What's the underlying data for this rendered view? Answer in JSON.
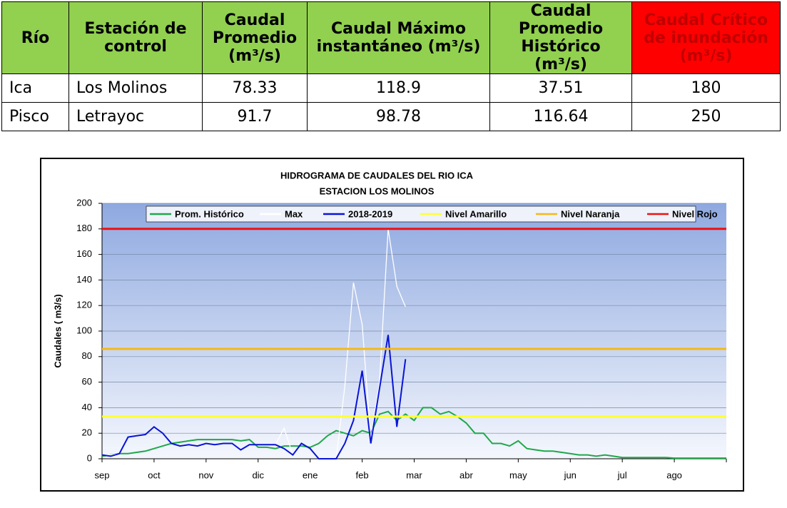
{
  "table": {
    "header": [
      "Río",
      "Estación de control",
      "Caudal Promedio (m³/s)",
      "Caudal Máximo instantáneo (m³/s)",
      "Caudal Promedio Histórico (m³/s)",
      "Caudal Crítico de inundación (m³/s)"
    ],
    "rows": [
      [
        "Ica",
        "Los Molinos",
        78.33,
        118.9,
        37.51,
        180
      ],
      [
        "Pisco",
        "Letrayoc",
        91.7,
        98.78,
        116.64,
        250
      ]
    ]
  },
  "chart_data": {
    "type": "line",
    "title": "HIDROGRAMA DE CAUDALES DEL RIO ICA",
    "subtitle": "ESTACION  LOS MOLINOS",
    "y_label": "Caudales ( m3/s)",
    "ylim": [
      0,
      200
    ],
    "yticks": [
      0,
      20,
      40,
      60,
      80,
      100,
      120,
      140,
      160,
      180,
      200
    ],
    "categories": [
      "sep",
      null,
      null,
      null,
      null,
      null,
      "oct",
      null,
      null,
      null,
      null,
      null,
      "nov",
      null,
      null,
      null,
      null,
      null,
      "dic",
      null,
      null,
      null,
      null,
      null,
      "ene",
      null,
      null,
      null,
      null,
      null,
      "feb",
      null,
      null,
      null,
      null,
      null,
      "mar",
      null,
      null,
      null,
      null,
      null,
      "abr",
      null,
      null,
      null,
      null,
      null,
      "may",
      null,
      null,
      null,
      null,
      null,
      "jun",
      null,
      null,
      null,
      null,
      null,
      "jul",
      null,
      null,
      null,
      null,
      null,
      "ago",
      null,
      null,
      null,
      null,
      null,
      null
    ],
    "series": [
      {
        "name": "Prom. Histórico",
        "color": "#1fa84a",
        "values": [
          2,
          3,
          4,
          4,
          5,
          6,
          8,
          10,
          12,
          13,
          14,
          15,
          15,
          15,
          15,
          15,
          14,
          15,
          9,
          9,
          8,
          10,
          10,
          10,
          9,
          12,
          18,
          22,
          20,
          18,
          22,
          20,
          35,
          37,
          30,
          35,
          30,
          40,
          40,
          35,
          37,
          33,
          28,
          20,
          20,
          12,
          12,
          10,
          14,
          8,
          7,
          6,
          6,
          5,
          4,
          3,
          3,
          2,
          3,
          2,
          1,
          1,
          1,
          1,
          1,
          1,
          0.5,
          0.5,
          0.5,
          0.5,
          0.5,
          0.5,
          0.5
        ]
      },
      {
        "name": "Max",
        "color": "#ffffff",
        "values": [
          3,
          3,
          4,
          17,
          18,
          19,
          25,
          20,
          12,
          10,
          11,
          10,
          12,
          11,
          12,
          12,
          7,
          11,
          11,
          11,
          11,
          24,
          3,
          12,
          8,
          0,
          0,
          0,
          57,
          138,
          105,
          15,
          60,
          180,
          135,
          119,
          null,
          null,
          null,
          null,
          null,
          null,
          null,
          null,
          null,
          null,
          null,
          null,
          null,
          null,
          null,
          null,
          null,
          null,
          null,
          null,
          null,
          null,
          null,
          null,
          null,
          null,
          null,
          null,
          null,
          null,
          null,
          null,
          null,
          null,
          null,
          null,
          null
        ]
      },
      {
        "name": "2018-2019",
        "color": "#0a14d6",
        "values": [
          3,
          2,
          4,
          17,
          18,
          19,
          25,
          20,
          12,
          10,
          11,
          10,
          12,
          11,
          12,
          12,
          7,
          11,
          11,
          11,
          11,
          8,
          3,
          12,
          8,
          0,
          0,
          0,
          12,
          30,
          69,
          12,
          55,
          97,
          25,
          78,
          null,
          null,
          null,
          null,
          null,
          null,
          null,
          null,
          null,
          null,
          null,
          null,
          null,
          null,
          null,
          null,
          null,
          null,
          null,
          null,
          null,
          null,
          null,
          null,
          null,
          null,
          null,
          null,
          null,
          null,
          null,
          null,
          null,
          null,
          null,
          null,
          null
        ]
      }
    ],
    "reference_lines": [
      {
        "name": "Nivel Amarillo",
        "color": "#ffff33",
        "value": 33
      },
      {
        "name": "Nivel Naranja",
        "color": "#f5b819",
        "value": 86
      },
      {
        "name": "Nivel Rojo",
        "color": "#ee1111",
        "value": 180
      }
    ],
    "grid": true
  }
}
